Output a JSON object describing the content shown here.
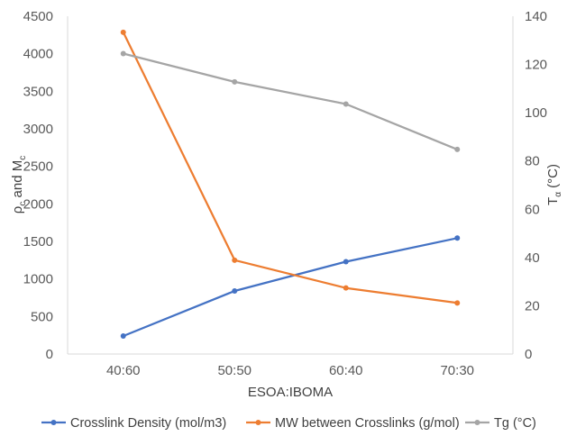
{
  "chart_data": {
    "type": "line",
    "xlabel": "ESOA:IBOMA",
    "categories": [
      "40:60",
      "50:50",
      "60:40",
      "70:30"
    ],
    "y_left": {
      "label_main": "ρ",
      "label_sub1": "c",
      "label_mid": " and  M",
      "label_sub2": "c",
      "lim": [
        0,
        4500
      ],
      "ticks": [
        0,
        500,
        1000,
        1500,
        2000,
        2500,
        3000,
        3500,
        4000,
        4500
      ]
    },
    "y_right": {
      "label_main": "T",
      "label_sub": "α",
      "label_tail": " (°C)",
      "lim": [
        0,
        140
      ],
      "ticks": [
        0,
        20,
        40,
        60,
        80,
        100,
        120,
        140
      ]
    },
    "grid": false,
    "legend_position": "bottom",
    "series": [
      {
        "name": "Crosslink Density (mol/m3)",
        "axis": "left",
        "color": "#4472C4",
        "values": [
          240,
          840,
          1230,
          1545
        ]
      },
      {
        "name": "MW between Crosslinks (g/mol)",
        "axis": "left",
        "color": "#ED7D31",
        "values": [
          4285,
          1250,
          880,
          680
        ]
      },
      {
        "name": "Tg (°C)",
        "axis": "right",
        "color": "#A5A5A5",
        "values": [
          124.5,
          112.8,
          103.6,
          84.8
        ]
      }
    ]
  }
}
